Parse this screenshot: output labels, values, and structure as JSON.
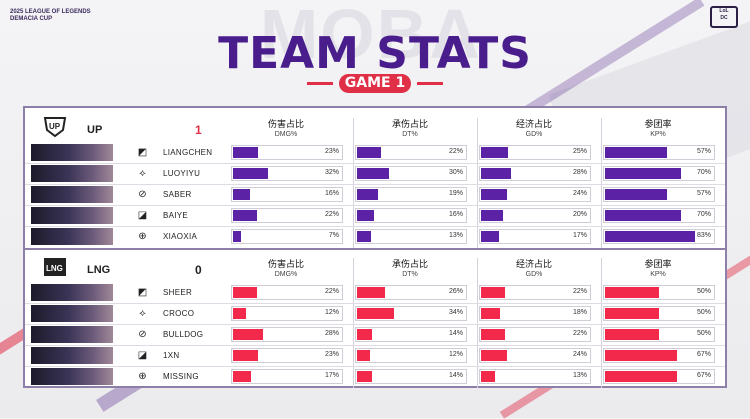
{
  "brand": {
    "league_line1": "2025 LEAGUE OF LEGENDS",
    "league_line2": "DEMACIA CUP",
    "watermark": "MOBA"
  },
  "title": "TEAM STATS",
  "game_label": "GAME 1",
  "columns": [
    {
      "cn": "伤害占比",
      "en": "DMG%"
    },
    {
      "cn": "承伤占比",
      "en": "DT%"
    },
    {
      "cn": "经济占比",
      "en": "GD%"
    },
    {
      "cn": "参团率",
      "en": "KP%"
    }
  ],
  "colors": {
    "up_fill": "#5b22a6",
    "lng_fill": "#f2294a",
    "title": "#4a1d8c",
    "accent": "#e03048"
  },
  "teams": [
    {
      "name": "UP",
      "score": "1",
      "score_color": "#e03048",
      "fill": "#5b22a6",
      "players": [
        {
          "role_icon": "top-icon",
          "name": "LIANGCHEN",
          "stats": [
            "23%",
            "22%",
            "25%",
            "57%"
          ],
          "values": [
            23,
            22,
            25,
            57
          ]
        },
        {
          "role_icon": "jungle-icon",
          "name": "LUOYIYU",
          "stats": [
            "32%",
            "30%",
            "28%",
            "70%"
          ],
          "values": [
            32,
            30,
            28,
            70
          ]
        },
        {
          "role_icon": "mid-icon",
          "name": "SABER",
          "stats": [
            "16%",
            "19%",
            "24%",
            "57%"
          ],
          "values": [
            16,
            19,
            24,
            57
          ]
        },
        {
          "role_icon": "bot-icon",
          "name": "BAIYE",
          "stats": [
            "22%",
            "16%",
            "20%",
            "70%"
          ],
          "values": [
            22,
            16,
            20,
            70
          ]
        },
        {
          "role_icon": "support-icon",
          "name": "XIAOXIA",
          "stats": [
            "7%",
            "13%",
            "17%",
            "83%"
          ],
          "values": [
            7,
            13,
            17,
            83
          ]
        }
      ]
    },
    {
      "name": "LNG",
      "score": "0",
      "score_color": "#222222",
      "fill": "#f2294a",
      "players": [
        {
          "role_icon": "top-icon",
          "name": "SHEER",
          "stats": [
            "22%",
            "26%",
            "22%",
            "50%"
          ],
          "values": [
            22,
            26,
            22,
            50
          ]
        },
        {
          "role_icon": "jungle-icon",
          "name": "CROCO",
          "stats": [
            "12%",
            "34%",
            "18%",
            "50%"
          ],
          "values": [
            12,
            34,
            18,
            50
          ]
        },
        {
          "role_icon": "mid-icon",
          "name": "BULLDOG",
          "stats": [
            "28%",
            "14%",
            "22%",
            "50%"
          ],
          "values": [
            28,
            14,
            22,
            50
          ]
        },
        {
          "role_icon": "bot-icon",
          "name": "1XN",
          "stats": [
            "23%",
            "12%",
            "24%",
            "67%"
          ],
          "values": [
            23,
            12,
            24,
            67
          ]
        },
        {
          "role_icon": "support-icon",
          "name": "MISSING",
          "stats": [
            "17%",
            "14%",
            "13%",
            "67%"
          ],
          "values": [
            17,
            14,
            13,
            67
          ]
        }
      ]
    }
  ]
}
